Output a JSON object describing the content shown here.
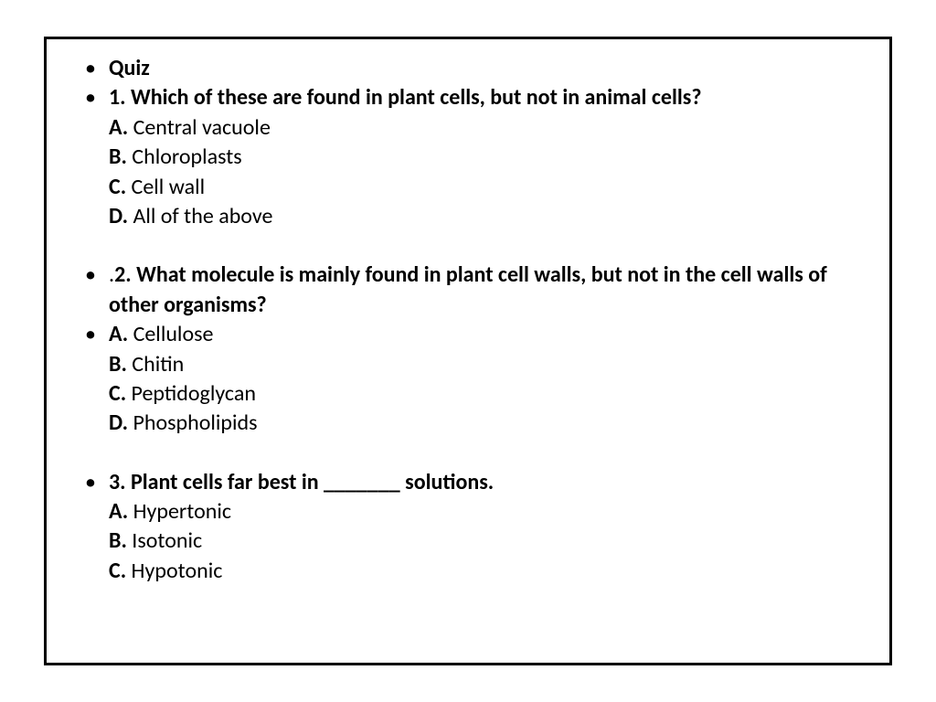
{
  "slide": {
    "title": "Quiz",
    "q1": {
      "question": "1. Which of these are found in plant cells, but not in animal cells?",
      "optA_label": "A.",
      "optA_text": " Central vacuole",
      "optB_label": "B.",
      "optB_text": " Chloroplasts",
      "optC_label": "C.",
      "optC_text": " Cell wall",
      "optD_label": "D.",
      "optD_text": " All of the above"
    },
    "q2": {
      "prefix": ".",
      "question": "2. What molecule is mainly found in plant cell walls, but not in the cell walls of other organisms?",
      "optA_label": "A.",
      "optA_text": " Cellulose",
      "optB_label": "B.",
      "optB_text": " Chitin",
      "optC_label": "C.",
      "optC_text": " Peptidoglycan",
      "optD_label": "D.",
      "optD_text": " Phospholipids"
    },
    "q3": {
      "question": "3. Plant cells far best in _______ solutions.",
      "optA_label": "A.",
      "optA_text": " Hypertonic",
      "optB_label": "B.",
      "optB_text": " Isotonic",
      "optC_label": "C.",
      "optC_text": " Hypotonic"
    }
  },
  "styling": {
    "border_color": "#000000",
    "border_width": 3,
    "background_color": "#ffffff",
    "text_color": "#000000",
    "font_family": "Calibri",
    "base_font_size": 24,
    "bold_weight": 700,
    "normal_weight": 400
  }
}
